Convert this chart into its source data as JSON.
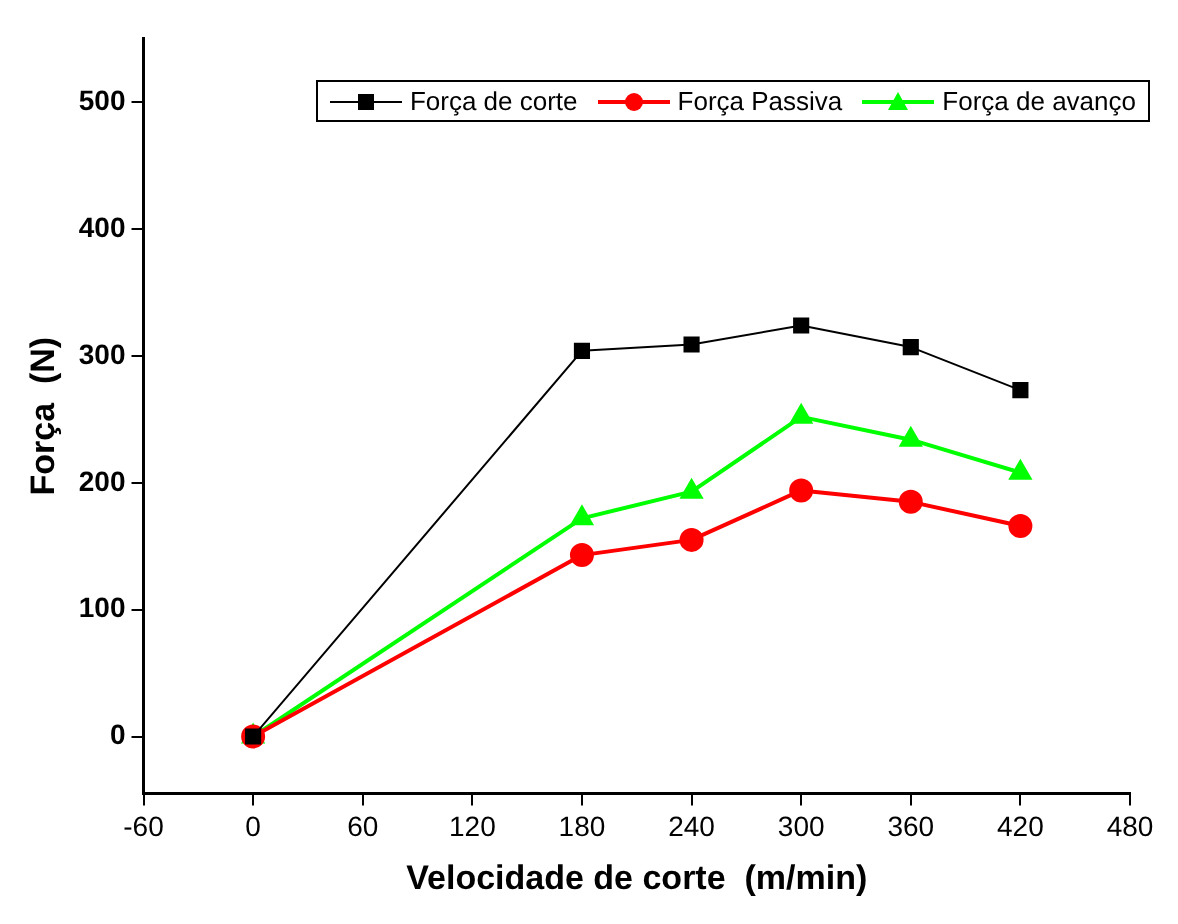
{
  "chart_data": {
    "type": "line",
    "xlabel": "Velocidade de corte  (m/min)",
    "ylabel": "Força  (N)",
    "x": [
      0,
      180,
      240,
      300,
      360,
      420
    ],
    "series": [
      {
        "name": "Força de corte",
        "color": "#000000",
        "marker": "square",
        "values": [
          0,
          304,
          309,
          324,
          307,
          273
        ]
      },
      {
        "name": "Força Passiva",
        "color": "#ff0000",
        "marker": "circle",
        "values": [
          0,
          143,
          155,
          194,
          185,
          166
        ]
      },
      {
        "name": "Força de avanço",
        "color": "#00ff00",
        "marker": "triangle",
        "values": [
          0,
          172,
          193,
          252,
          234,
          208
        ]
      }
    ],
    "xlim": [
      -60,
      480
    ],
    "xticks": [
      -60,
      0,
      60,
      120,
      180,
      240,
      300,
      360,
      420,
      480
    ],
    "ylim": [
      -45,
      550
    ],
    "yticks": [
      0,
      100,
      200,
      300,
      400,
      500
    ],
    "grid": false,
    "legend": "top right"
  }
}
